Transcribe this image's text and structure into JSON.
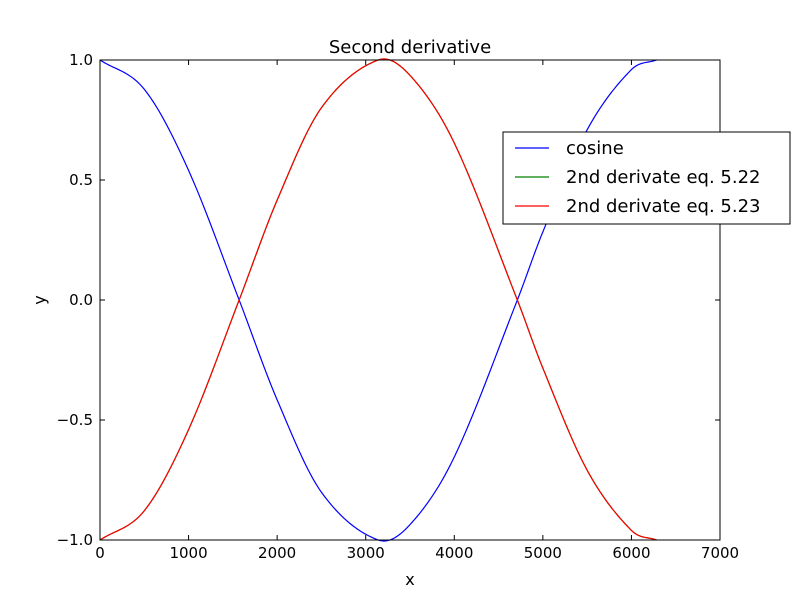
{
  "chart_data": {
    "type": "line",
    "title": "Second derivative",
    "xlabel": "x",
    "ylabel": "y",
    "xlim": [
      0,
      7000
    ],
    "ylim": [
      -1.0,
      1.0
    ],
    "x_ticks": [
      0,
      1000,
      2000,
      3000,
      4000,
      5000,
      6000,
      7000
    ],
    "x_tick_labels": [
      "0",
      "1000",
      "2000",
      "3000",
      "4000",
      "5000",
      "6000",
      "7000"
    ],
    "y_ticks": [
      -1.0,
      -0.5,
      0.0,
      0.5,
      1.0
    ],
    "y_tick_labels": [
      "−1.0",
      "−0.5",
      "0.0",
      "0.5",
      "1.0"
    ],
    "grid": false,
    "legend_position": "right",
    "x": [
      0,
      500,
      1000,
      1571,
      2000,
      2500,
      3142,
      3500,
      4000,
      4712,
      5000,
      5500,
      6000,
      6283
    ],
    "series": [
      {
        "name": "cosine",
        "color": "#0000ff",
        "values": [
          1.0,
          0.878,
          0.54,
          0.0,
          -0.416,
          -0.801,
          -1.0,
          -0.936,
          -0.654,
          0.0,
          0.284,
          0.709,
          0.96,
          1.0
        ]
      },
      {
        "name": "2nd derivate eq. 5.22",
        "color": "#008000",
        "values": [
          -1.0,
          -0.878,
          -0.54,
          0.0,
          0.416,
          0.801,
          1.0,
          0.936,
          0.654,
          0.0,
          -0.284,
          -0.709,
          -0.96,
          -1.0
        ]
      },
      {
        "name": "2nd derivate eq. 5.23",
        "color": "#ff0000",
        "values": [
          -1.0,
          -0.878,
          -0.54,
          0.0,
          0.416,
          0.801,
          1.0,
          0.936,
          0.654,
          0.0,
          -0.284,
          -0.709,
          -0.96,
          -1.0
        ]
      }
    ]
  }
}
